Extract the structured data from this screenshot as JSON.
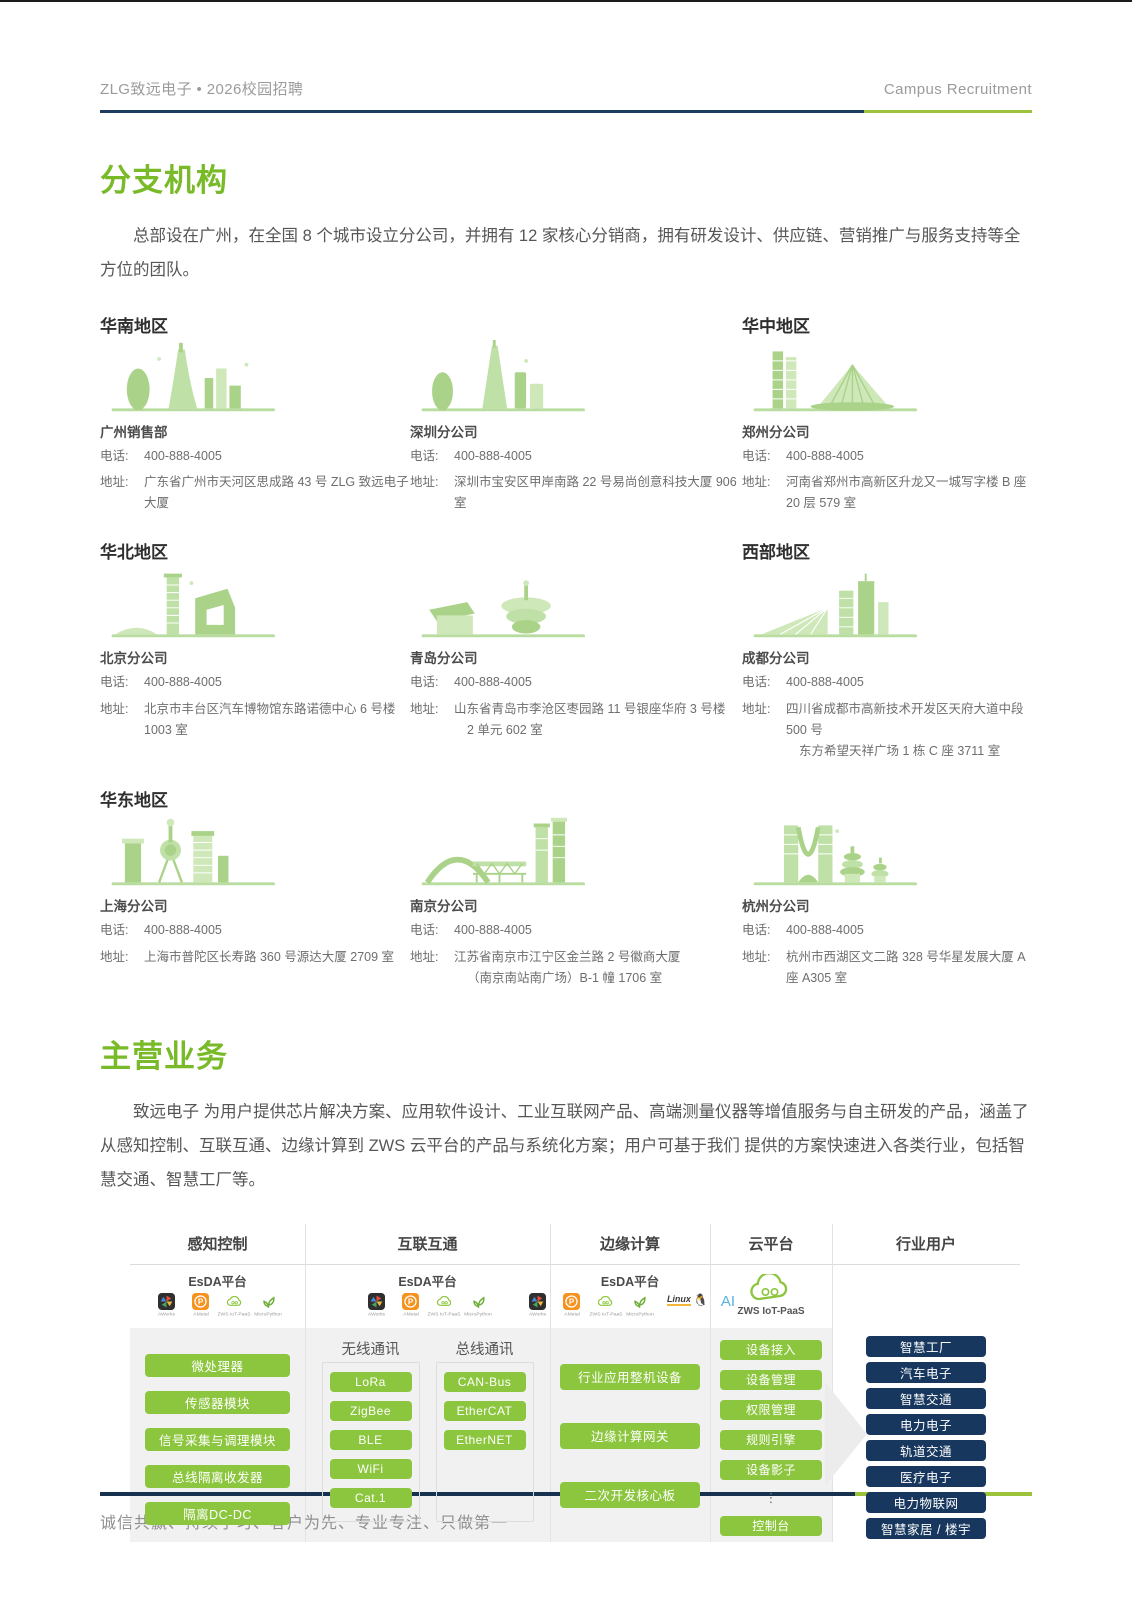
{
  "colors": {
    "accent_green": "#8cc63e",
    "title_green": "#79ba28",
    "navy": "#17375e",
    "rule_navy": "#1c3b5e",
    "rule_green": "#9dc23c"
  },
  "header": {
    "left": "ZLG致远电子 • 2026校园招聘",
    "right": "Campus Recruitment"
  },
  "sections": {
    "branches": {
      "title": "分支机构",
      "intro": "总部设在广州，在全国 8 个城市设立分公司，并拥有 12 家核心分销商，拥有研发设计、供应链、营销推广与服务支持等全方位的团队。",
      "phone_label": "电话:",
      "address_label": "地址:",
      "offices": [
        {
          "region": "华南地区",
          "name": "广州销售部",
          "phone": "400-888-4005",
          "address": [
            "广东省广州市天河区思成路 43 号 ZLG 致远电子大厦"
          ],
          "city": "guangzhou"
        },
        {
          "region": "",
          "name": "深圳分公司",
          "phone": "400-888-4005",
          "address": [
            "深圳市宝安区甲岸南路 22 号易尚创意科技大厦 906 室"
          ],
          "city": "shenzhen"
        },
        {
          "region": "华中地区",
          "name": "郑州分公司",
          "phone": "400-888-4005",
          "address": [
            "河南省郑州市高新区升龙又一城写字楼 B 座 20 层 579 室"
          ],
          "city": "zhengzhou"
        },
        {
          "region": "华北地区",
          "name": "北京分公司",
          "phone": "400-888-4005",
          "address": [
            "北京市丰台区汽车博物馆东路诺德中心 6 号楼 1003 室"
          ],
          "city": "beijing"
        },
        {
          "region": "",
          "name": "青岛分公司",
          "phone": "400-888-4005",
          "address": [
            "山东省青岛市李沧区枣园路 11 号银座华府 3 号楼",
            "2 单元 602 室"
          ],
          "city": "qingdao"
        },
        {
          "region": "西部地区",
          "name": "成都分公司",
          "phone": "400-888-4005",
          "address": [
            "四川省成都市高新技术开发区天府大道中段 500 号",
            "东方希望天祥广场 1 栋 C 座 3711 室"
          ],
          "city": "chengdu"
        },
        {
          "region": "华东地区",
          "name": "上海分公司",
          "phone": "400-888-4005",
          "address": [
            "上海市普陀区长寿路 360 号源达大厦 2709 室"
          ],
          "city": "shanghai"
        },
        {
          "region": "",
          "name": "南京分公司",
          "phone": "400-888-4005",
          "address": [
            "江苏省南京市江宁区金兰路 2 号徽商大厦",
            "（南京南站南广场）B-1 幢 1706 室"
          ],
          "city": "nanjing"
        },
        {
          "region": "",
          "name": "杭州分公司",
          "phone": "400-888-4005",
          "address": [
            "杭州市西湖区文二路 328 号华星发展大厦 A 座 A305 室"
          ],
          "city": "hangzhou"
        }
      ]
    },
    "business": {
      "title": "主营业务",
      "intro": "致远电子 为用户提供芯片解决方案、应用软件设计、工业互联网产品、高端测量仪器等增值服务与自主研发的产品，涵盖了从感知控制、互联互通、边缘计算到 ZWS 云平台的产品与系统化方案；用户可基于我们 提供的方案快速进入各类行业，包括智慧交通、智慧工厂等。",
      "diagram": {
        "columns": [
          "感知控制",
          "互联互通",
          "边缘计算",
          "云平台",
          "行业用户"
        ],
        "esda_label": "EsDA平台",
        "platform_icons": [
          {
            "label": "AWorks",
            "kind": "aworks"
          },
          {
            "label": "AMetal",
            "kind": "ametal"
          },
          {
            "label": "ZWS IoT-PaaS",
            "kind": "zws"
          },
          {
            "label": "MicroPython",
            "kind": "mpy"
          }
        ],
        "edge_extra_icons": [
          {
            "label": "Linux",
            "kind": "linux"
          },
          {
            "label": "AI",
            "kind": "ai"
          }
        ],
        "cloud_platform_label": "ZWS IoT-PaaS",
        "perception_items": [
          "微处理器",
          "传感器模块",
          "信号采集与调理模块",
          "总线隔离收发器",
          "隔离DC-DC"
        ],
        "wireless": {
          "title": "无线通讯",
          "items": [
            "LoRa",
            "ZigBee",
            "BLE",
            "WiFi",
            "Cat.1"
          ]
        },
        "bus": {
          "title": "总线通讯",
          "items": [
            "CAN-Bus",
            "EtherCAT",
            "EtherNET"
          ]
        },
        "edge_items": [
          "行业应用整机设备",
          "边缘计算网关",
          "二次开发核心板"
        ],
        "cloud_items": [
          "设备接入",
          "设备管理",
          "权限管理",
          "规则引擎",
          "设备影子",
          "⋮",
          "控制台"
        ],
        "industry_items": [
          "智慧工厂",
          "汽车电子",
          "智慧交通",
          "电力电子",
          "轨道交通",
          "医疗电子",
          "电力物联网",
          "智慧家居 / 楼宇"
        ]
      }
    }
  },
  "footer": {
    "slogan": "诚信共赢、持续学习、客户为先、专业专注、只做第一"
  }
}
